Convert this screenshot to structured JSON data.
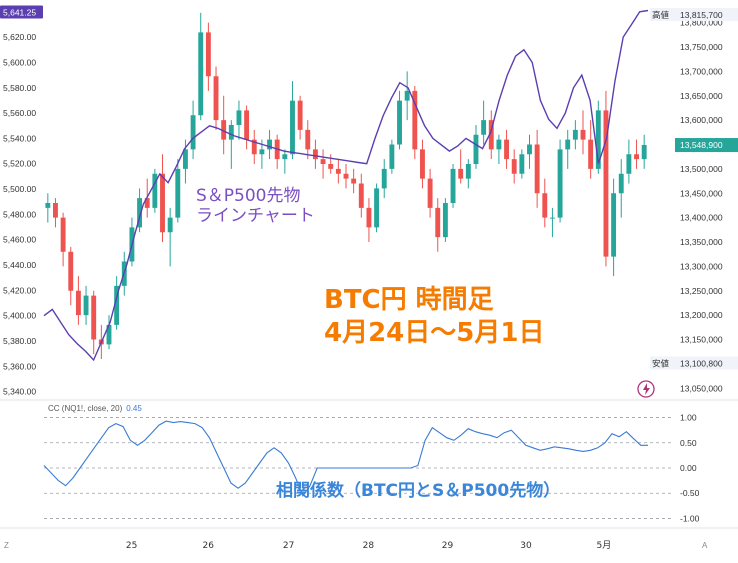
{
  "chart_data": [
    {
      "type": "line",
      "series": [
        {
          "type": "candlestick",
          "axis": "right",
          "ohlc": [
            [
              13420000,
              13450000,
              13390000,
              13430000
            ],
            [
              13430000,
              13440000,
              13380000,
              13400000
            ],
            [
              13400000,
              13410000,
              13300000,
              13330000
            ],
            [
              13330000,
              13340000,
              13220000,
              13250000
            ],
            [
              13250000,
              13280000,
              13180000,
              13200000
            ],
            [
              13200000,
              13260000,
              13180000,
              13240000
            ],
            [
              13240000,
              13250000,
              13120000,
              13150000
            ],
            [
              13150000,
              13180000,
              13110000,
              13140000
            ],
            [
              13140000,
              13200000,
              13130000,
              13180000
            ],
            [
              13180000,
              13280000,
              13170000,
              13260000
            ],
            [
              13260000,
              13330000,
              13240000,
              13310000
            ],
            [
              13310000,
              13400000,
              13300000,
              13380000
            ],
            [
              13380000,
              13460000,
              13370000,
              13440000
            ],
            [
              13440000,
              13480000,
              13400000,
              13420000
            ],
            [
              13420000,
              13500000,
              13410000,
              13490000
            ],
            [
              13490000,
              13530000,
              13350000,
              13370000
            ],
            [
              13370000,
              13420000,
              13300000,
              13400000
            ],
            [
              13400000,
              13520000,
              13390000,
              13500000
            ],
            [
              13500000,
              13560000,
              13470000,
              13540000
            ],
            [
              13540000,
              13640000,
              13520000,
              13610000
            ],
            [
              13610000,
              13820000,
              13600000,
              13780000
            ],
            [
              13780000,
              13800000,
              13660000,
              13690000
            ],
            [
              13690000,
              13710000,
              13580000,
              13600000
            ],
            [
              13600000,
              13650000,
              13530000,
              13560000
            ],
            [
              13560000,
              13600000,
              13500000,
              13590000
            ],
            [
              13590000,
              13640000,
              13560000,
              13620000
            ],
            [
              13620000,
              13630000,
              13540000,
              13560000
            ],
            [
              13560000,
              13580000,
              13510000,
              13530000
            ],
            [
              13530000,
              13560000,
              13500000,
              13540000
            ],
            [
              13540000,
              13580000,
              13520000,
              13560000
            ],
            [
              13560000,
              13570000,
              13500000,
              13520000
            ],
            [
              13520000,
              13540000,
              13490000,
              13530000
            ],
            [
              13530000,
              13680000,
              13520000,
              13640000
            ],
            [
              13640000,
              13650000,
              13560000,
              13580000
            ],
            [
              13580000,
              13600000,
              13520000,
              13540000
            ],
            [
              13540000,
              13560000,
              13500000,
              13520000
            ],
            [
              13520000,
              13540000,
              13480000,
              13510000
            ],
            [
              13510000,
              13530000,
              13490000,
              13500000
            ],
            [
              13500000,
              13520000,
              13470000,
              13490000
            ],
            [
              13490000,
              13510000,
              13460000,
              13480000
            ],
            [
              13480000,
              13500000,
              13450000,
              13470000
            ],
            [
              13470000,
              13490000,
              13400000,
              13420000
            ],
            [
              13420000,
              13440000,
              13350000,
              13380000
            ],
            [
              13380000,
              13470000,
              13370000,
              13460000
            ],
            [
              13460000,
              13520000,
              13440000,
              13500000
            ],
            [
              13500000,
              13560000,
              13490000,
              13550000
            ],
            [
              13550000,
              13660000,
              13540000,
              13640000
            ],
            [
              13640000,
              13700000,
              13600000,
              13660000
            ],
            [
              13660000,
              13670000,
              13520000,
              13540000
            ],
            [
              13540000,
              13560000,
              13460000,
              13480000
            ],
            [
              13480000,
              13500000,
              13400000,
              13420000
            ],
            [
              13420000,
              13440000,
              13330000,
              13360000
            ],
            [
              13360000,
              13440000,
              13350000,
              13430000
            ],
            [
              13430000,
              13510000,
              13420000,
              13500000
            ],
            [
              13500000,
              13540000,
              13470000,
              13480000
            ],
            [
              13480000,
              13520000,
              13460000,
              13510000
            ],
            [
              13510000,
              13590000,
              13500000,
              13570000
            ],
            [
              13570000,
              13640000,
              13550000,
              13600000
            ],
            [
              13600000,
              13620000,
              13520000,
              13540000
            ],
            [
              13540000,
              13570000,
              13510000,
              13560000
            ],
            [
              13560000,
              13580000,
              13500000,
              13520000
            ],
            [
              13520000,
              13540000,
              13470000,
              13490000
            ],
            [
              13490000,
              13540000,
              13480000,
              13530000
            ],
            [
              13530000,
              13570000,
              13500000,
              13550000
            ],
            [
              13550000,
              13580000,
              13420000,
              13450000
            ],
            [
              13450000,
              13480000,
              13380000,
              13400000
            ],
            [
              13400000,
              13420000,
              13360000,
              13400000
            ],
            [
              13400000,
              13560000,
              13390000,
              13540000
            ],
            [
              13540000,
              13580000,
              13500000,
              13560000
            ],
            [
              13560000,
              13600000,
              13540000,
              13580000
            ],
            [
              13580000,
              13620000,
              13530000,
              13560000
            ],
            [
              13560000,
              13600000,
              13480000,
              13500000
            ],
            [
              13500000,
              13640000,
              13490000,
              13620000
            ],
            [
              13620000,
              13660000,
              13300000,
              13320000
            ],
            [
              13320000,
              13480000,
              13280000,
              13450000
            ],
            [
              13450000,
              13520000,
              13400000,
              13490000
            ],
            [
              13490000,
              13560000,
              13470000,
              13530000
            ],
            [
              13530000,
              13560000,
              13500000,
              13520000
            ],
            [
              13520000,
              13570000,
              13500000,
              13549000
            ]
          ]
        },
        {
          "name": "S&P500先物",
          "axis": "left",
          "color": "#5b3fb0",
          "values": [
            5400,
            5405,
            5395,
            5385,
            5378,
            5372,
            5365,
            5380,
            5395,
            5420,
            5440,
            5465,
            5488,
            5500,
            5512,
            5505,
            5518,
            5532,
            5540,
            5545,
            5550,
            5548,
            5545,
            5542,
            5540,
            5538,
            5536,
            5534,
            5532,
            5530,
            5529,
            5528,
            5527,
            5526,
            5525,
            5524,
            5523,
            5522,
            5521,
            5520,
            5540,
            5558,
            5572,
            5584,
            5580,
            5565,
            5550,
            5540,
            5535,
            5530,
            5534,
            5540,
            5536,
            5532,
            5545,
            5570,
            5590,
            5605,
            5610,
            5600,
            5570,
            5555,
            5548,
            5560,
            5580,
            5590,
            5570,
            5520,
            5540,
            5585,
            5620,
            5630,
            5640,
            5641
          ]
        }
      ],
      "y_right_ticks": [
        13050000,
        13100000,
        13150000,
        13200000,
        13250000,
        13300000,
        13350000,
        13400000,
        13450000,
        13500000,
        13550000,
        13600000,
        13650000,
        13700000,
        13750000,
        13800000
      ],
      "y_right_tick_labels": [
        "13,050,000",
        "13,100,000",
        "13,150,000",
        "13,200,000",
        "13,250,000",
        "13,300,000",
        "13,350,000",
        "13,400,000",
        "13,450,000",
        "13,500,000",
        "13,550,000",
        "13,600,000",
        "13,650,000",
        "13,700,000",
        "13,750,000",
        "13,800,000"
      ],
      "y_left_ticks": [
        5340,
        5360,
        5380,
        5400,
        5420,
        5440,
        5460,
        5480,
        5500,
        5520,
        5540,
        5560,
        5580,
        5600,
        5620
      ],
      "y_left_tick_labels": [
        "5,340.00",
        "5,360.00",
        "5,380.00",
        "5,400.00",
        "5,420.00",
        "5,440.00",
        "5,460.00",
        "5,480.00",
        "5,500.00",
        "5,520.00",
        "5,540.00",
        "5,560.00",
        "5,580.00",
        "5,600.00",
        "5,620.00"
      ],
      "ylim_right": [
        13030000,
        13830000
      ],
      "ylim_left": [
        5335,
        5643
      ],
      "badges": {
        "left_last": "5,641.25",
        "high_label": "高値",
        "high_value": "13,815,700",
        "last_price": "13,548,900",
        "low_label": "安値",
        "low_value": "13,100,800"
      },
      "annotations": {
        "sp500": "S＆P500先物\nラインチャート",
        "btc": "BTC円 時間足\n4月24日～5月1日"
      },
      "colors": {
        "up": "#26a69a",
        "down": "#ef5350"
      }
    },
    {
      "type": "line",
      "legend": "CC (NQ1!, close, 20)",
      "last_value": "0.45",
      "series": [
        {
          "color": "#3a7bd5",
          "values": [
            0.05,
            -0.1,
            -0.25,
            -0.35,
            -0.2,
            0.0,
            0.2,
            0.4,
            0.6,
            0.8,
            0.88,
            0.82,
            0.55,
            0.45,
            0.55,
            0.7,
            0.85,
            0.93,
            0.9,
            0.92,
            0.9,
            0.88,
            0.8,
            0.6,
            0.3,
            0.0,
            -0.3,
            -0.4,
            -0.3,
            -0.1,
            0.1,
            0.3,
            0.4,
            0.3,
            0.1,
            -0.2,
            -0.55,
            -0.35,
            0.0,
            0.0,
            0.0,
            0.0,
            0.0,
            0.0,
            0.0,
            0.0,
            0.0,
            0.0,
            0.0,
            0.0,
            0.0,
            0.0,
            0.05,
            0.55,
            0.8,
            0.7,
            0.6,
            0.55,
            0.65,
            0.78,
            0.72,
            0.68,
            0.65,
            0.6,
            0.7,
            0.75,
            0.6,
            0.45,
            0.4,
            0.35,
            0.38,
            0.42,
            0.4,
            0.38,
            0.35,
            0.33,
            0.35,
            0.4,
            0.5,
            0.68,
            0.62,
            0.72,
            0.58,
            0.45,
            0.45
          ]
        }
      ],
      "y_ticks": [
        1.0,
        0.5,
        0.0,
        -0.5,
        -1.0
      ],
      "y_tick_labels": [
        "1.00",
        "0.50",
        "0.00",
        "-0.50",
        "-1.00"
      ],
      "ylim": [
        -1.15,
        1.15
      ],
      "annotation": "相関係数（BTC円とS＆P500先物）"
    }
  ],
  "x_ticks": [
    {
      "label": "25",
      "pos": 0.145
    },
    {
      "label": "26",
      "pos": 0.272
    },
    {
      "label": "27",
      "pos": 0.405
    },
    {
      "label": "28",
      "pos": 0.537
    },
    {
      "label": "29",
      "pos": 0.668
    },
    {
      "label": "30",
      "pos": 0.798
    },
    {
      "label": "5月",
      "pos": 0.927
    }
  ],
  "corner_labels": {
    "left": "Z",
    "right": "A"
  }
}
